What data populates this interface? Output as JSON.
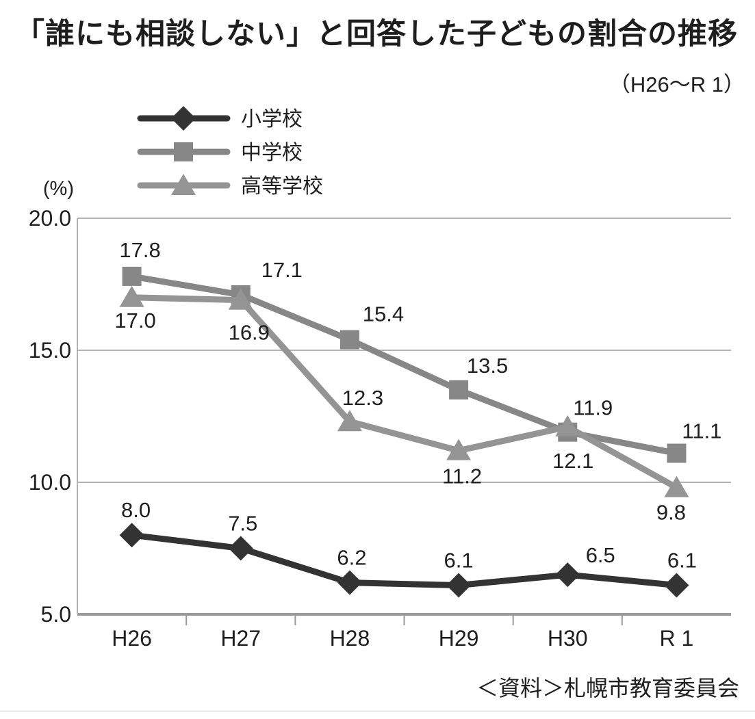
{
  "title": "「誰にも相談しない」と回答した子どもの割合の推移",
  "subtitle": "（H26～R 1）",
  "source": "＜資料＞札幌市教育委員会",
  "y_axis_unit": "(%)",
  "colors": {
    "elementary": "#333333",
    "junior_high": "#878787",
    "high_school": "#949494",
    "grid": "#b3b3b3",
    "axis": "#9a9a9a",
    "label_text": "#1e1e1e"
  },
  "chart_data": {
    "type": "line",
    "categories": [
      "H26",
      "H27",
      "H28",
      "H29",
      "H30",
      "R 1"
    ],
    "ylim": [
      5.0,
      20.0
    ],
    "yticks": [
      20.0,
      15.0,
      10.0,
      5.0
    ],
    "ytick_labels": [
      "20.0",
      "15.0",
      "10.0",
      "5.0"
    ],
    "grid": true,
    "legend_position": "top-left",
    "series": [
      {
        "name": "中学校",
        "key": "junior-high-school",
        "marker": "square",
        "color": "#878787",
        "values": [
          17.8,
          17.1,
          15.4,
          13.5,
          11.9,
          11.1
        ],
        "labels": [
          "17.8",
          "17.1",
          "15.4",
          "13.5",
          "11.9",
          "11.1"
        ],
        "label_offsets": [
          [
            12,
            -28
          ],
          [
            60,
            -26
          ],
          [
            49,
            -27
          ],
          [
            42,
            -25
          ],
          [
            37,
            -25
          ],
          [
            37,
            -22
          ]
        ]
      },
      {
        "name": "高等学校",
        "key": "high-school",
        "marker": "triangle",
        "color": "#949494",
        "values": [
          17.0,
          16.9,
          12.3,
          11.2,
          12.1,
          9.8
        ],
        "labels": [
          "17.0",
          "16.9",
          "12.3",
          "11.2",
          "12.1",
          "9.8"
        ],
        "label_offsets": [
          [
            5,
            44
          ],
          [
            12,
            58
          ],
          [
            19,
            -24
          ],
          [
            5,
            48
          ],
          [
            8,
            60
          ],
          [
            -8,
            47
          ]
        ]
      },
      {
        "name": "小学校",
        "key": "elementary-school",
        "marker": "diamond",
        "color": "#333333",
        "values": [
          8.0,
          7.5,
          6.2,
          6.1,
          6.5,
          6.1
        ],
        "labels": [
          "8.0",
          "7.5",
          "6.2",
          "6.1",
          "6.5",
          "6.1"
        ],
        "label_offsets": [
          [
            6,
            -26
          ],
          [
            3,
            -26
          ],
          [
            3,
            -26
          ],
          [
            0,
            -26
          ],
          [
            48,
            -18
          ],
          [
            8,
            -26
          ]
        ]
      }
    ],
    "legend_order": [
      "elementary-school",
      "junior-high-school",
      "high-school"
    ]
  }
}
